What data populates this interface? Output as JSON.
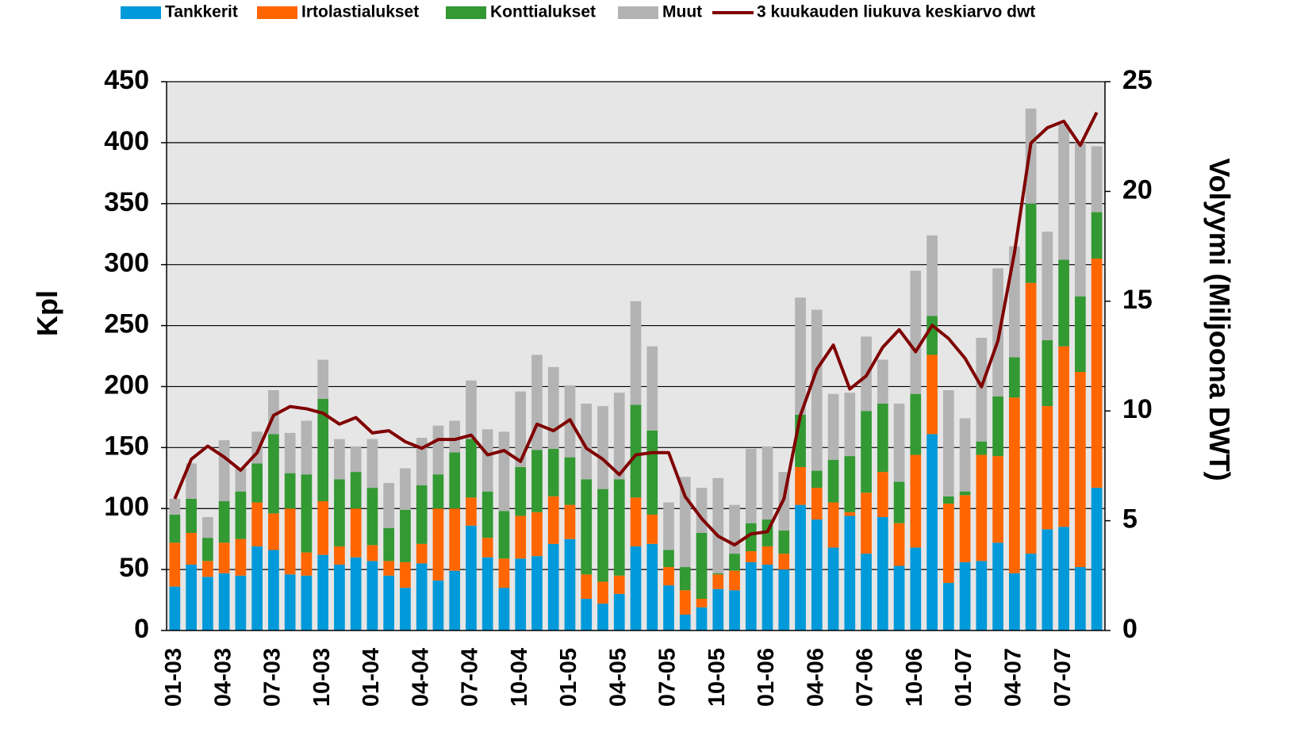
{
  "chart_data": {
    "type": "bar",
    "categories": [
      "01-03",
      null,
      null,
      "04-03",
      null,
      null,
      "07-03",
      null,
      null,
      "10-03",
      null,
      null,
      "01-04",
      null,
      null,
      "04-04",
      null,
      null,
      "07-04",
      null,
      null,
      "10-04",
      null,
      null,
      "01-05",
      null,
      null,
      "04-05",
      null,
      null,
      "07-05",
      null,
      null,
      "10-05",
      null,
      null,
      "01-06",
      null,
      null,
      "04-06",
      null,
      null,
      "07-06",
      null,
      null,
      "10-06",
      null,
      null,
      "01-07",
      null,
      null,
      "04-07",
      null,
      null,
      "07-07",
      null,
      null
    ],
    "stacked": true,
    "series": [
      {
        "name": "Tankkerit",
        "color": "#0099d9",
        "values": [
          36,
          54,
          44,
          47,
          45,
          69,
          66,
          46,
          45,
          62,
          54,
          60,
          57,
          45,
          35,
          55,
          41,
          49,
          86,
          60,
          35,
          59,
          61,
          71,
          75,
          26,
          22,
          30,
          69,
          71,
          37,
          13,
          19,
          34,
          33,
          56,
          54,
          50,
          103,
          91,
          68,
          94,
          63,
          93,
          53,
          68,
          161,
          39,
          56,
          57,
          72,
          47,
          63,
          83,
          85,
          52,
          117
        ]
      },
      {
        "name": "Irtolastialukset",
        "color": "#ff6600",
        "values": [
          36,
          26,
          13,
          25,
          30,
          36,
          30,
          54,
          19,
          44,
          15,
          40,
          13,
          12,
          21,
          16,
          59,
          51,
          23,
          16,
          24,
          35,
          36,
          39,
          28,
          20,
          18,
          15,
          40,
          24,
          15,
          20,
          7,
          12,
          16,
          9,
          15,
          13,
          31,
          26,
          37,
          3,
          50,
          37,
          35,
          76,
          65,
          65,
          55,
          87,
          71,
          144,
          222,
          101,
          148,
          160,
          188
        ]
      },
      {
        "name": "Konttialukset",
        "color": "#339933",
        "values": [
          23,
          28,
          19,
          34,
          39,
          32,
          65,
          29,
          64,
          84,
          55,
          30,
          47,
          27,
          43,
          48,
          28,
          46,
          48,
          38,
          39,
          40,
          51,
          39,
          39,
          78,
          76,
          79,
          76,
          69,
          14,
          19,
          54,
          1,
          14,
          23,
          22,
          19,
          43,
          14,
          35,
          46,
          67,
          56,
          34,
          50,
          32,
          6,
          3,
          11,
          49,
          33,
          65,
          54,
          71,
          62,
          38
        ]
      },
      {
        "name": "Muut",
        "color": "#b3b3b3",
        "values": [
          13,
          29,
          17,
          50,
          19,
          26,
          36,
          33,
          44,
          32,
          33,
          21,
          40,
          37,
          34,
          39,
          40,
          26,
          48,
          51,
          65,
          62,
          78,
          67,
          59,
          62,
          68,
          71,
          85,
          69,
          39,
          74,
          37,
          78,
          40,
          61,
          60,
          48,
          96,
          132,
          54,
          52,
          61,
          36,
          64,
          101,
          66,
          87,
          60,
          85,
          105,
          91,
          78,
          89,
          111,
          126,
          54
        ]
      },
      {
        "name": "3 kuukauden liukuva keskiarvo dwt",
        "color": "#800000",
        "type": "line",
        "axis": "y2",
        "values": [
          6.0,
          7.8,
          8.4,
          7.9,
          7.3,
          8.1,
          9.8,
          10.2,
          10.1,
          9.9,
          9.4,
          9.7,
          9.0,
          9.1,
          8.6,
          8.3,
          8.7,
          8.7,
          8.9,
          8.0,
          8.2,
          7.7,
          9.4,
          9.1,
          9.6,
          8.3,
          7.8,
          7.1,
          8.0,
          8.1,
          8.1,
          6.1,
          5.1,
          4.3,
          3.9,
          4.4,
          4.5,
          6.0,
          9.8,
          11.9,
          13.0,
          11.0,
          11.6,
          12.9,
          13.7,
          12.7,
          13.9,
          13.3,
          12.4,
          11.1,
          13.2,
          17.2,
          22.2,
          22.9,
          23.2,
          22.1,
          23.6
        ]
      }
    ],
    "ylabel": "Kpl",
    "y2label": "Volyymi (Miljoona DWT)",
    "ylim": [
      0,
      450
    ],
    "yticks": [
      0,
      50,
      100,
      150,
      200,
      250,
      300,
      350,
      400,
      450
    ],
    "y2lim": [
      0,
      25
    ],
    "y2ticks": [
      0,
      5,
      10,
      15,
      20,
      25
    ],
    "grid": true,
    "legend": "top"
  }
}
